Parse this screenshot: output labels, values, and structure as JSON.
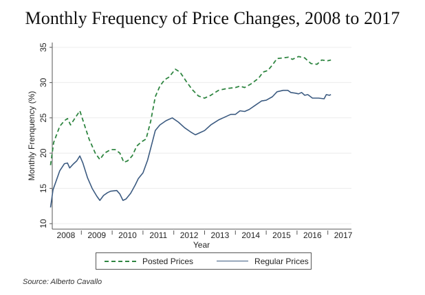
{
  "title": "Monthly Frequency of Price Changes, 2008 to 2017",
  "source": "Source: Alberto Cavallo",
  "chart_data": {
    "type": "line",
    "title": "Monthly Frequency of Price Changes, 2008 to 2017",
    "xlabel": "Year",
    "ylabel": "Monthly Frenquency (%)",
    "xlim": [
      2008,
      2017.2
    ],
    "ylim": [
      10,
      35
    ],
    "grid": true,
    "legend_position": "bottom",
    "x_tick_labels": [
      "2008",
      "2009",
      "2010",
      "2011",
      "2012",
      "2013",
      "2014",
      "2015",
      "2016",
      "2017"
    ],
    "y_ticks": [
      10,
      15,
      20,
      25,
      30,
      35
    ],
    "y_tick_labels": [
      "10",
      "15",
      "20",
      "25",
      "30",
      "35"
    ],
    "series": [
      {
        "name": "Posted Prices",
        "style": "dashed",
        "color": "#2e8540",
        "points": [
          [
            2008.0,
            18.3
          ],
          [
            2008.1,
            21.5
          ],
          [
            2008.3,
            23.8
          ],
          [
            2008.45,
            24.6
          ],
          [
            2008.55,
            24.9
          ],
          [
            2008.65,
            24.0
          ],
          [
            2008.8,
            25.0
          ],
          [
            2008.95,
            26.0
          ],
          [
            2009.1,
            24.0
          ],
          [
            2009.25,
            22.0
          ],
          [
            2009.45,
            20.0
          ],
          [
            2009.6,
            19.1
          ],
          [
            2009.75,
            20.0
          ],
          [
            2009.95,
            20.5
          ],
          [
            2010.1,
            20.5
          ],
          [
            2010.25,
            20.0
          ],
          [
            2010.38,
            18.7
          ],
          [
            2010.5,
            18.9
          ],
          [
            2010.65,
            19.6
          ],
          [
            2010.8,
            21.0
          ],
          [
            2010.95,
            21.6
          ],
          [
            2011.1,
            22.0
          ],
          [
            2011.25,
            24.5
          ],
          [
            2011.4,
            28.0
          ],
          [
            2011.55,
            29.5
          ],
          [
            2011.7,
            30.4
          ],
          [
            2011.85,
            30.8
          ],
          [
            2012.05,
            31.9
          ],
          [
            2012.2,
            31.5
          ],
          [
            2012.4,
            30.2
          ],
          [
            2012.6,
            29.0
          ],
          [
            2012.8,
            28.1
          ],
          [
            2013.0,
            27.8
          ],
          [
            2013.2,
            28.2
          ],
          [
            2013.45,
            28.9
          ],
          [
            2013.65,
            29.1
          ],
          [
            2013.8,
            29.2
          ],
          [
            2014.0,
            29.3
          ],
          [
            2014.15,
            29.5
          ],
          [
            2014.3,
            29.3
          ],
          [
            2014.5,
            29.8
          ],
          [
            2014.75,
            30.6
          ],
          [
            2014.9,
            31.5
          ],
          [
            2015.05,
            31.7
          ],
          [
            2015.2,
            32.5
          ],
          [
            2015.35,
            33.4
          ],
          [
            2015.55,
            33.5
          ],
          [
            2015.72,
            33.6
          ],
          [
            2015.85,
            33.3
          ],
          [
            2016.05,
            33.7
          ],
          [
            2016.25,
            33.5
          ],
          [
            2016.45,
            32.7
          ],
          [
            2016.65,
            32.6
          ],
          [
            2016.8,
            33.2
          ],
          [
            2017.0,
            33.1
          ],
          [
            2017.1,
            33.2
          ]
        ]
      },
      {
        "name": "Regular Prices",
        "style": "solid",
        "color": "#3b5a80",
        "points": [
          [
            2008.0,
            12.3
          ],
          [
            2008.08,
            14.8
          ],
          [
            2008.3,
            17.5
          ],
          [
            2008.45,
            18.5
          ],
          [
            2008.55,
            18.6
          ],
          [
            2008.62,
            17.9
          ],
          [
            2008.75,
            18.5
          ],
          [
            2008.85,
            18.9
          ],
          [
            2008.95,
            19.6
          ],
          [
            2009.05,
            18.6
          ],
          [
            2009.2,
            16.5
          ],
          [
            2009.35,
            15.0
          ],
          [
            2009.5,
            13.9
          ],
          [
            2009.6,
            13.3
          ],
          [
            2009.72,
            14.0
          ],
          [
            2009.85,
            14.4
          ],
          [
            2009.95,
            14.6
          ],
          [
            2010.15,
            14.7
          ],
          [
            2010.25,
            14.2
          ],
          [
            2010.35,
            13.3
          ],
          [
            2010.45,
            13.5
          ],
          [
            2010.6,
            14.3
          ],
          [
            2010.75,
            15.5
          ],
          [
            2010.85,
            16.4
          ],
          [
            2011.0,
            17.2
          ],
          [
            2011.15,
            19.0
          ],
          [
            2011.3,
            21.5
          ],
          [
            2011.4,
            23.2
          ],
          [
            2011.55,
            24.0
          ],
          [
            2011.75,
            24.6
          ],
          [
            2011.95,
            25.0
          ],
          [
            2012.15,
            24.4
          ],
          [
            2012.35,
            23.6
          ],
          [
            2012.55,
            23.0
          ],
          [
            2012.7,
            22.6
          ],
          [
            2012.85,
            22.9
          ],
          [
            2013.0,
            23.2
          ],
          [
            2013.2,
            24.0
          ],
          [
            2013.45,
            24.7
          ],
          [
            2013.65,
            25.1
          ],
          [
            2013.85,
            25.5
          ],
          [
            2014.0,
            25.5
          ],
          [
            2014.15,
            26.0
          ],
          [
            2014.3,
            25.9
          ],
          [
            2014.45,
            26.2
          ],
          [
            2014.65,
            26.8
          ],
          [
            2014.85,
            27.4
          ],
          [
            2015.0,
            27.5
          ],
          [
            2015.2,
            28.0
          ],
          [
            2015.35,
            28.7
          ],
          [
            2015.55,
            28.9
          ],
          [
            2015.7,
            28.9
          ],
          [
            2015.8,
            28.6
          ],
          [
            2015.95,
            28.5
          ],
          [
            2016.05,
            28.4
          ],
          [
            2016.15,
            28.6
          ],
          [
            2016.25,
            28.2
          ],
          [
            2016.35,
            28.3
          ],
          [
            2016.5,
            27.8
          ],
          [
            2016.7,
            27.8
          ],
          [
            2016.88,
            27.7
          ],
          [
            2016.95,
            28.3
          ],
          [
            2017.05,
            28.2
          ],
          [
            2017.1,
            28.3
          ]
        ]
      }
    ]
  },
  "legend": {
    "items": [
      {
        "label": "Posted Prices"
      },
      {
        "label": "Regular Prices"
      }
    ]
  }
}
